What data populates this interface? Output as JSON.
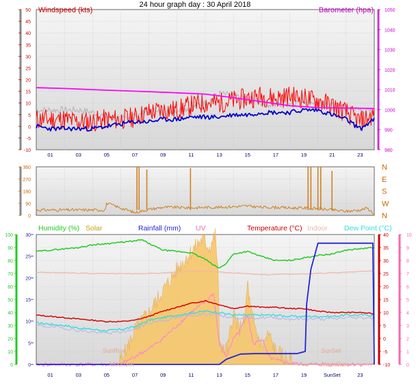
{
  "colors": {
    "windspeed": "#ff0000",
    "wind_avg": "#0000cc",
    "gust_grey": "#b8b8b8",
    "barometer": "#ff00ff",
    "wind_dir": "#d2801e",
    "humidity": "#22cc22",
    "solar": "#c8a000",
    "solar_fill": "#f7c76a",
    "rainfall": "#2222dd",
    "uv": "#ff88cc",
    "temperature": "#dd0000",
    "indoor": "#f0b8a8",
    "dew_point": "#33dddd",
    "sun_text": "#e8a890",
    "axis_green": "#22cc22",
    "axis_pink": "#ff66aa",
    "axis_red": "#cc0000",
    "axis_orange": "#cc6600"
  },
  "chart_data": [
    {
      "type": "line",
      "title": "24 hour graph day : 30 April 2018",
      "y_left_label": "Windspeed (kts)",
      "y_right_label": "Barometer (hpa)",
      "y_left_range": [
        -10,
        50
      ],
      "y_left_ticks": [
        "-10",
        "-5",
        "0",
        "5",
        "10",
        "15",
        "20",
        "25",
        "30",
        "35",
        "40",
        "45",
        "50"
      ],
      "y_right_range": [
        980,
        1050
      ],
      "y_right_ticks": [
        "980",
        "990",
        "1000",
        "1010",
        "1020",
        "1030",
        "1040",
        "1050"
      ],
      "x_range": [
        0,
        24
      ],
      "x_ticks": [
        "01",
        "03",
        "05",
        "07",
        "09",
        "11",
        "13",
        "15",
        "17",
        "19",
        "21",
        "23"
      ],
      "series": [
        {
          "name": "Gust (grey)",
          "x": [
            0,
            1,
            2,
            3,
            4,
            5,
            6,
            7,
            8,
            9,
            10,
            11,
            12,
            13,
            14,
            15,
            16,
            17,
            18,
            19,
            20,
            21,
            22,
            23,
            24
          ],
          "values": [
            7,
            7,
            7,
            7,
            6,
            4,
            3,
            5,
            6,
            6,
            7,
            8,
            10,
            14,
            13,
            12,
            10,
            9,
            10,
            11,
            10,
            9,
            8,
            7,
            6
          ]
        },
        {
          "name": "Windspeed",
          "x": [
            0,
            1,
            2,
            3,
            4,
            5,
            6,
            7,
            8,
            9,
            10,
            11,
            12,
            13,
            14,
            15,
            16,
            17,
            18,
            19,
            20,
            21,
            22,
            23,
            24
          ],
          "values": [
            3,
            3,
            3,
            2,
            2,
            3,
            3,
            4,
            6,
            7,
            7,
            9,
            10,
            10,
            11,
            12,
            13,
            12,
            13,
            12,
            11,
            9,
            6,
            2,
            5
          ]
        },
        {
          "name": "Wind Average",
          "x": [
            0,
            1,
            2,
            3,
            4,
            5,
            6,
            7,
            8,
            9,
            10,
            11,
            12,
            13,
            14,
            15,
            16,
            17,
            18,
            19,
            20,
            21,
            22,
            23,
            24
          ],
          "values": [
            0,
            -1,
            -1,
            -1,
            -1,
            0,
            1,
            2,
            2,
            3,
            3,
            4,
            4,
            4,
            5,
            5,
            6,
            6,
            6,
            7,
            7,
            5,
            3,
            -1,
            3
          ]
        },
        {
          "name": "Barometer",
          "x": [
            0,
            2,
            4,
            6,
            8,
            10,
            12,
            14,
            16,
            18,
            20,
            22,
            24
          ],
          "values": [
            1011,
            1010.6,
            1010,
            1009.5,
            1009,
            1008.4,
            1007.8,
            1006,
            1004,
            1002,
            1001,
            1000.8,
            1000.6
          ]
        }
      ]
    },
    {
      "type": "line",
      "y_left_ticks": [
        "0",
        "90",
        "180",
        "270",
        "360"
      ],
      "y_right_ticks": [
        "N",
        "W",
        "S",
        "E",
        "N"
      ],
      "y_range": [
        0,
        360
      ],
      "x_range": [
        0,
        24
      ],
      "series": [
        {
          "name": "Wind Direction",
          "x": [
            0,
            1,
            2,
            3,
            4,
            4.9,
            5,
            6,
            7,
            8,
            9,
            10,
            11,
            12,
            13,
            14,
            15,
            16,
            17,
            18,
            19,
            20,
            21,
            22,
            23,
            23.5,
            24
          ],
          "values": [
            40,
            40,
            40,
            40,
            40,
            40,
            90,
            55,
            20,
            45,
            60,
            60,
            55,
            60,
            60,
            65,
            70,
            60,
            60,
            55,
            55,
            50,
            40,
            30,
            40,
            55,
            10
          ]
        },
        {
          "name": "Spikes",
          "x": [
            7.15,
            7.3,
            7.85,
            10.95,
            19.3,
            19.5,
            20.0,
            20.2,
            21.0
          ],
          "values": [
            360,
            360,
            340,
            350,
            360,
            360,
            360,
            360,
            330
          ]
        }
      ]
    },
    {
      "type": "area",
      "legend": [
        "Humidity (%)",
        "Solar",
        "Rainfall (mm)",
        "UV",
        "Temperature (°C)",
        "Indoor",
        "Dew Point (°C)"
      ],
      "y_left_humidity_ticks": [
        "0",
        "10",
        "20",
        "30",
        "40",
        "50",
        "60",
        "70",
        "80",
        "90",
        "100"
      ],
      "y_left_rain_ticks": [
        "0",
        "5",
        "10",
        "15",
        "20",
        "25",
        "30"
      ],
      "y_right_temp_ticks": [
        "-10",
        "-5",
        "0",
        "5",
        "10",
        "15",
        "20",
        "25",
        "30",
        "35",
        "40"
      ],
      "y_right_uv_ticks": [
        "0",
        "1",
        "2",
        "3",
        "4",
        "5",
        "6",
        "7",
        "8",
        "9",
        "10"
      ],
      "x_range": [
        0,
        24
      ],
      "x_ticks": [
        "01",
        "03",
        "05",
        "07",
        "09",
        "11",
        "13",
        "15",
        "17",
        "19",
        "SunSet",
        "23"
      ],
      "annotations": [
        "SunRise",
        "MoonSet",
        "SunSet",
        "MoonRise"
      ],
      "series": [
        {
          "name": "Humidity",
          "x": [
            0,
            1,
            2,
            3,
            4,
            5,
            6,
            7,
            7.5,
            8,
            9,
            10,
            11,
            12,
            12.5,
            13,
            13.5,
            14,
            15,
            16,
            17,
            18,
            19,
            19.5,
            20,
            21,
            22,
            23,
            24
          ],
          "values": [
            87,
            88,
            89,
            90,
            92,
            93,
            94,
            95,
            96,
            93,
            88,
            87,
            86,
            81,
            77,
            74,
            78,
            85,
            87,
            83,
            80,
            80,
            82,
            83,
            84,
            85,
            88,
            89,
            90
          ]
        },
        {
          "name": "Solar",
          "x": [
            0,
            5,
            5.8,
            6.5,
            7,
            8,
            9,
            10,
            11,
            11.8,
            12.3,
            12.7,
            12.9,
            13,
            13.3,
            13.6,
            14,
            14.4,
            14.8,
            15,
            15.2,
            15.5,
            16,
            16.5,
            17,
            17.5,
            18,
            18.5,
            19,
            24
          ],
          "values": [
            0,
            0,
            0,
            4,
            8,
            12,
            17,
            22,
            26,
            29,
            27,
            30,
            22,
            6,
            3,
            4,
            12,
            8,
            10,
            19,
            13,
            9,
            4,
            7,
            3,
            2,
            1,
            0,
            0,
            0
          ]
        },
        {
          "name": "UV",
          "x": [
            0,
            5,
            6,
            7,
            8,
            9,
            10,
            11,
            12,
            12.6,
            13,
            13.5,
            14,
            14.5,
            15,
            15.4,
            16,
            16.5,
            17,
            18,
            19,
            24
          ],
          "values": [
            0,
            0,
            0,
            0.6,
            1.2,
            2,
            3,
            4,
            4.8,
            5.5,
            1.5,
            0.6,
            2,
            2.7,
            4,
            1.5,
            2,
            0.6,
            0.3,
            0.1,
            0,
            0
          ]
        },
        {
          "name": "Temperature",
          "x": [
            0,
            1,
            2,
            3,
            4,
            5,
            6,
            7,
            8,
            9,
            10,
            11,
            12,
            13,
            14,
            15,
            16,
            17,
            18,
            19,
            20,
            21,
            22,
            23,
            24
          ],
          "values": [
            9,
            8.5,
            8,
            7.5,
            7,
            6.5,
            6.5,
            7,
            8.5,
            10.5,
            12,
            13.5,
            14.5,
            13,
            11.5,
            12.5,
            12,
            12,
            11.5,
            11.5,
            10.5,
            10,
            10,
            10,
            9.5
          ]
        },
        {
          "name": "Indoor",
          "x": [
            0,
            4,
            8,
            12,
            16,
            20,
            24
          ],
          "values": [
            25.5,
            25,
            25,
            26,
            24.5,
            25,
            26
          ]
        },
        {
          "name": "Dew Point",
          "x": [
            0,
            1,
            2,
            3,
            4,
            5,
            6,
            7,
            8,
            9,
            10,
            11,
            12,
            13,
            14,
            15,
            16,
            17,
            18,
            19,
            20,
            21,
            22,
            23,
            24
          ],
          "values": [
            6,
            5.5,
            5,
            4,
            3.5,
            3,
            3.5,
            4.5,
            7,
            8,
            9,
            9.8,
            10.5,
            10,
            9,
            9,
            9,
            9,
            8.5,
            8.5,
            8.5,
            8.5,
            9,
            9,
            9
          ]
        },
        {
          "name": "Rainfall",
          "x": [
            0,
            12.5,
            13,
            13.5,
            14.5,
            15.5,
            16.5,
            17.5,
            18.5,
            19.1,
            19.2,
            19.5,
            20,
            21,
            22,
            23,
            23.9,
            24
          ],
          "values": [
            0,
            0,
            0,
            1.2,
            2.4,
            2.5,
            2.5,
            2.5,
            2.5,
            3,
            14,
            22,
            28,
            28,
            28,
            28,
            28,
            0
          ]
        }
      ]
    }
  ]
}
